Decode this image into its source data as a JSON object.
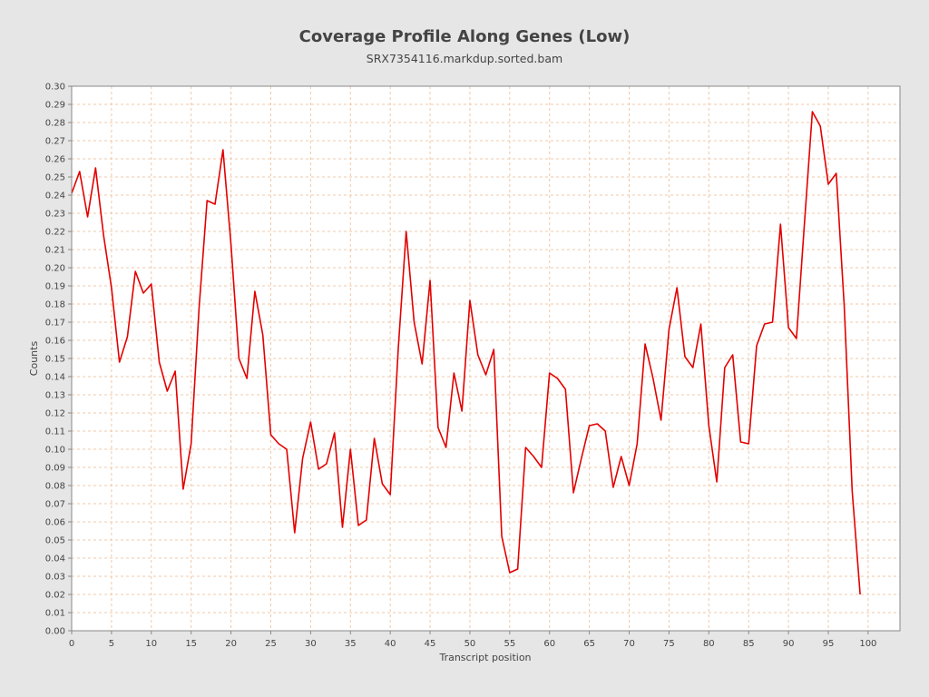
{
  "chart_data": {
    "type": "line",
    "title": "Coverage Profile Along Genes (Low)",
    "subtitle": "SRX7354116.markdup.sorted.bam",
    "xlabel": "Transcript position",
    "ylabel": "Counts",
    "xlim": [
      0,
      104
    ],
    "ylim": [
      0.0,
      0.3
    ],
    "x_ticks": [
      0,
      5,
      10,
      15,
      20,
      25,
      30,
      35,
      40,
      45,
      50,
      55,
      60,
      65,
      70,
      75,
      80,
      85,
      90,
      95,
      100
    ],
    "y_ticks": [
      "0.00",
      "0.01",
      "0.02",
      "0.03",
      "0.04",
      "0.05",
      "0.06",
      "0.07",
      "0.08",
      "0.09",
      "0.10",
      "0.11",
      "0.12",
      "0.13",
      "0.14",
      "0.15",
      "0.16",
      "0.17",
      "0.18",
      "0.19",
      "0.20",
      "0.21",
      "0.22",
      "0.23",
      "0.24",
      "0.25",
      "0.26",
      "0.27",
      "0.28",
      "0.29",
      "0.30"
    ],
    "grid": true,
    "legend": "none",
    "colors": {
      "line": "#e30000",
      "grid": "#f0c8a8",
      "plot_background": "#ffffff",
      "page_background": "#e6e6e6"
    },
    "series": [
      {
        "x": [
          0,
          1,
          2,
          3,
          4,
          5,
          6,
          7,
          8,
          9,
          10,
          11,
          12,
          13,
          14,
          15,
          16,
          17,
          18,
          19,
          20,
          21,
          22,
          23,
          24,
          25,
          26,
          27,
          28,
          29,
          30,
          31,
          32,
          33,
          34,
          35,
          36,
          37,
          38,
          39,
          40,
          41,
          42,
          43,
          44,
          45,
          46,
          47,
          48,
          49,
          50,
          51,
          52,
          53,
          54,
          55,
          56,
          57,
          58,
          59,
          60,
          61,
          62,
          63,
          64,
          65,
          66,
          67,
          68,
          69,
          70,
          71,
          72,
          73,
          74,
          75,
          76,
          77,
          78,
          79,
          80,
          81,
          82,
          83,
          84,
          85,
          86,
          87,
          88,
          89,
          90,
          91,
          92,
          93,
          94,
          95,
          96,
          97,
          98,
          99
        ],
        "values": [
          0.241,
          0.253,
          0.228,
          0.255,
          0.218,
          0.189,
          0.148,
          0.162,
          0.198,
          0.186,
          0.191,
          0.148,
          0.132,
          0.143,
          0.078,
          0.103,
          0.178,
          0.237,
          0.235,
          0.265,
          0.213,
          0.15,
          0.139,
          0.187,
          0.163,
          0.108,
          0.103,
          0.1,
          0.054,
          0.095,
          0.115,
          0.089,
          0.092,
          0.109,
          0.057,
          0.1,
          0.058,
          0.061,
          0.106,
          0.081,
          0.075,
          0.155,
          0.22,
          0.17,
          0.147,
          0.193,
          0.112,
          0.101,
          0.142,
          0.121,
          0.182,
          0.152,
          0.141,
          0.155,
          0.052,
          0.032,
          0.034,
          0.101,
          0.096,
          0.09,
          0.142,
          0.139,
          0.133,
          0.076,
          0.095,
          0.113,
          0.114,
          0.11,
          0.079,
          0.096,
          0.08,
          0.103,
          0.158,
          0.139,
          0.116,
          0.166,
          0.189,
          0.151,
          0.145,
          0.169,
          0.113,
          0.082,
          0.145,
          0.152,
          0.104,
          0.103,
          0.157,
          0.169,
          0.17,
          0.224,
          0.167,
          0.161,
          0.224,
          0.286,
          0.278,
          0.246,
          0.252,
          0.179,
          0.077,
          0.02
        ]
      }
    ]
  }
}
